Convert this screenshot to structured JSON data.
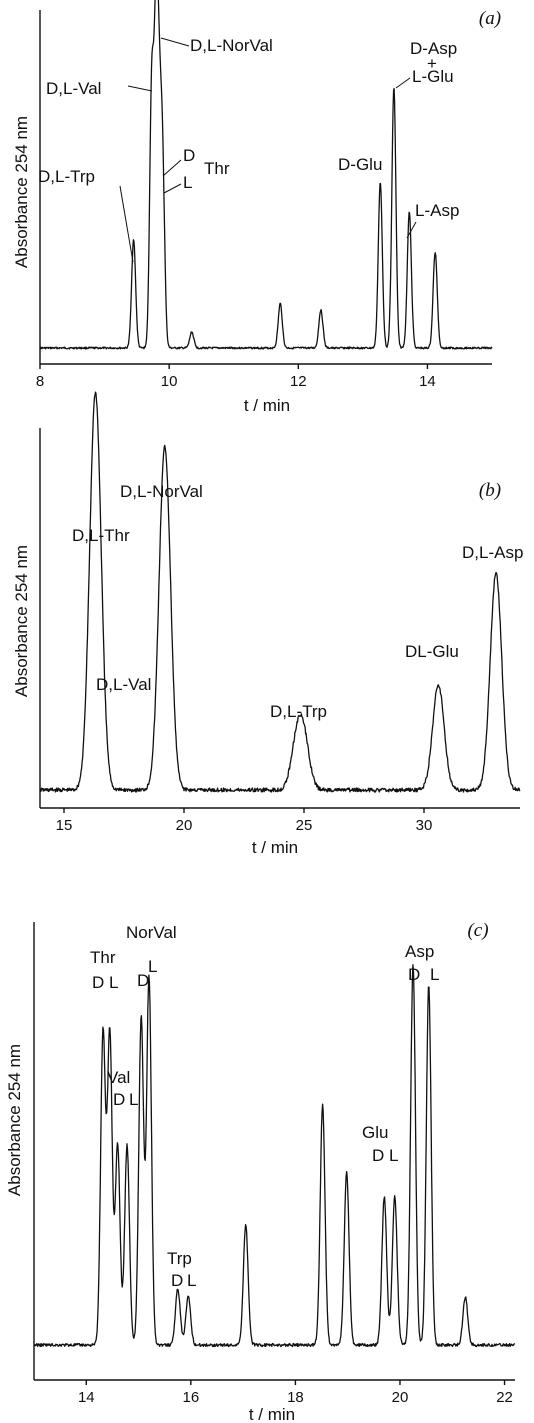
{
  "chart_data": [
    {
      "type": "line",
      "panel_label": "(a)",
      "xlabel": "t / min",
      "ylabel": "Absorbance 254 nm",
      "xlim": [
        8,
        15
      ],
      "x_ticks": [
        "8",
        "10",
        "12",
        "14"
      ],
      "x_tick_values": [
        8,
        10,
        12,
        14
      ],
      "peaks": [
        {
          "name": "D,L-Trp",
          "x": 9.45,
          "height": 0.34
        },
        {
          "name": "D,L-Val",
          "x": 9.73,
          "height": 0.82
        },
        {
          "name": "D,L-NorVal",
          "x": 9.8,
          "height": 0.98
        },
        {
          "name": "D Thr",
          "x": 9.85,
          "height": 0.55
        },
        {
          "name": "L Thr",
          "x": 9.9,
          "height": 0.53
        },
        {
          "name": "D-Glu",
          "x": 13.27,
          "height": 0.52
        },
        {
          "name": "D-Asp + L-Glu",
          "x": 13.48,
          "height": 0.82
        },
        {
          "name": "L-Asp",
          "x": 13.72,
          "height": 0.43
        },
        {
          "name": "",
          "x": 10.35,
          "height": 0.05
        },
        {
          "name": "",
          "x": 11.72,
          "height": 0.14
        },
        {
          "name": "",
          "x": 12.35,
          "height": 0.12
        },
        {
          "name": "",
          "x": 14.12,
          "height": 0.3
        }
      ],
      "annotations": [
        "D,L-NorVal",
        "D,L-Val",
        "D",
        "Thr",
        "L",
        "D,L-Trp",
        "D-Asp",
        "+",
        "L-Glu",
        "D-Glu",
        "L-Asp"
      ]
    },
    {
      "type": "line",
      "panel_label": "(b)",
      "xlabel": "t / min",
      "ylabel": "Absorbance 254 nm",
      "xlim": [
        14,
        34
      ],
      "x_ticks": [
        "15",
        "20",
        "25",
        "30"
      ],
      "x_tick_values": [
        15,
        20,
        25,
        30
      ],
      "peaks": [
        {
          "name": "D,L-Thr",
          "x": 16.3,
          "height": 0.92
        },
        {
          "name": "D,L-Val",
          "x": 16.35,
          "height": 0.22
        },
        {
          "name": "D,L-NorVal",
          "x": 19.2,
          "height": 0.98
        },
        {
          "name": "D,L-Trp",
          "x": 24.7,
          "height": 0.13
        },
        {
          "name": "",
          "x": 25.0,
          "height": 0.13
        },
        {
          "name": "DL-Glu",
          "x": 30.6,
          "height": 0.3
        },
        {
          "name": "D,L-Asp",
          "x": 33.0,
          "height": 0.62
        }
      ],
      "annotations": [
        "D,L-NorVal",
        "D,L-Thr",
        "D,L-Val",
        "D,L-Trp",
        "DL-Glu",
        "D,L-Asp"
      ]
    },
    {
      "type": "line",
      "panel_label": "(c)",
      "xlabel": "t / min",
      "ylabel": "Absorbance 254 nm",
      "xlim": [
        13,
        22.2
      ],
      "x_ticks": [
        "14",
        "16",
        "18",
        "20",
        "22"
      ],
      "x_tick_values": [
        14,
        16,
        18,
        20,
        22
      ],
      "peaks": [
        {
          "name": "Thr D",
          "x": 14.32,
          "height": 0.78
        },
        {
          "name": "Thr L",
          "x": 14.45,
          "height": 0.78
        },
        {
          "name": "Val D",
          "x": 14.6,
          "height": 0.5
        },
        {
          "name": "Val L",
          "x": 14.78,
          "height": 0.5
        },
        {
          "name": "NorVal D",
          "x": 15.05,
          "height": 0.82
        },
        {
          "name": "NorVal L",
          "x": 15.2,
          "height": 0.92
        },
        {
          "name": "Trp D",
          "x": 15.75,
          "height": 0.14
        },
        {
          "name": "Trp L",
          "x": 15.95,
          "height": 0.12
        },
        {
          "name": "Glu D",
          "x": 19.7,
          "height": 0.37
        },
        {
          "name": "Glu L",
          "x": 19.9,
          "height": 0.37
        },
        {
          "name": "Asp D",
          "x": 20.25,
          "height": 0.95
        },
        {
          "name": "Asp L",
          "x": 20.55,
          "height": 0.9
        },
        {
          "name": "",
          "x": 17.05,
          "height": 0.3
        },
        {
          "name": "",
          "x": 18.52,
          "height": 0.6
        },
        {
          "name": "",
          "x": 18.98,
          "height": 0.43
        },
        {
          "name": "",
          "x": 21.25,
          "height": 0.12
        }
      ],
      "annotations": [
        "NorVal",
        "Thr",
        "D",
        "L",
        "Val",
        "Trp",
        "Glu",
        "Asp"
      ]
    }
  ],
  "colors": {
    "line": "#111111",
    "background": "#ffffff"
  }
}
